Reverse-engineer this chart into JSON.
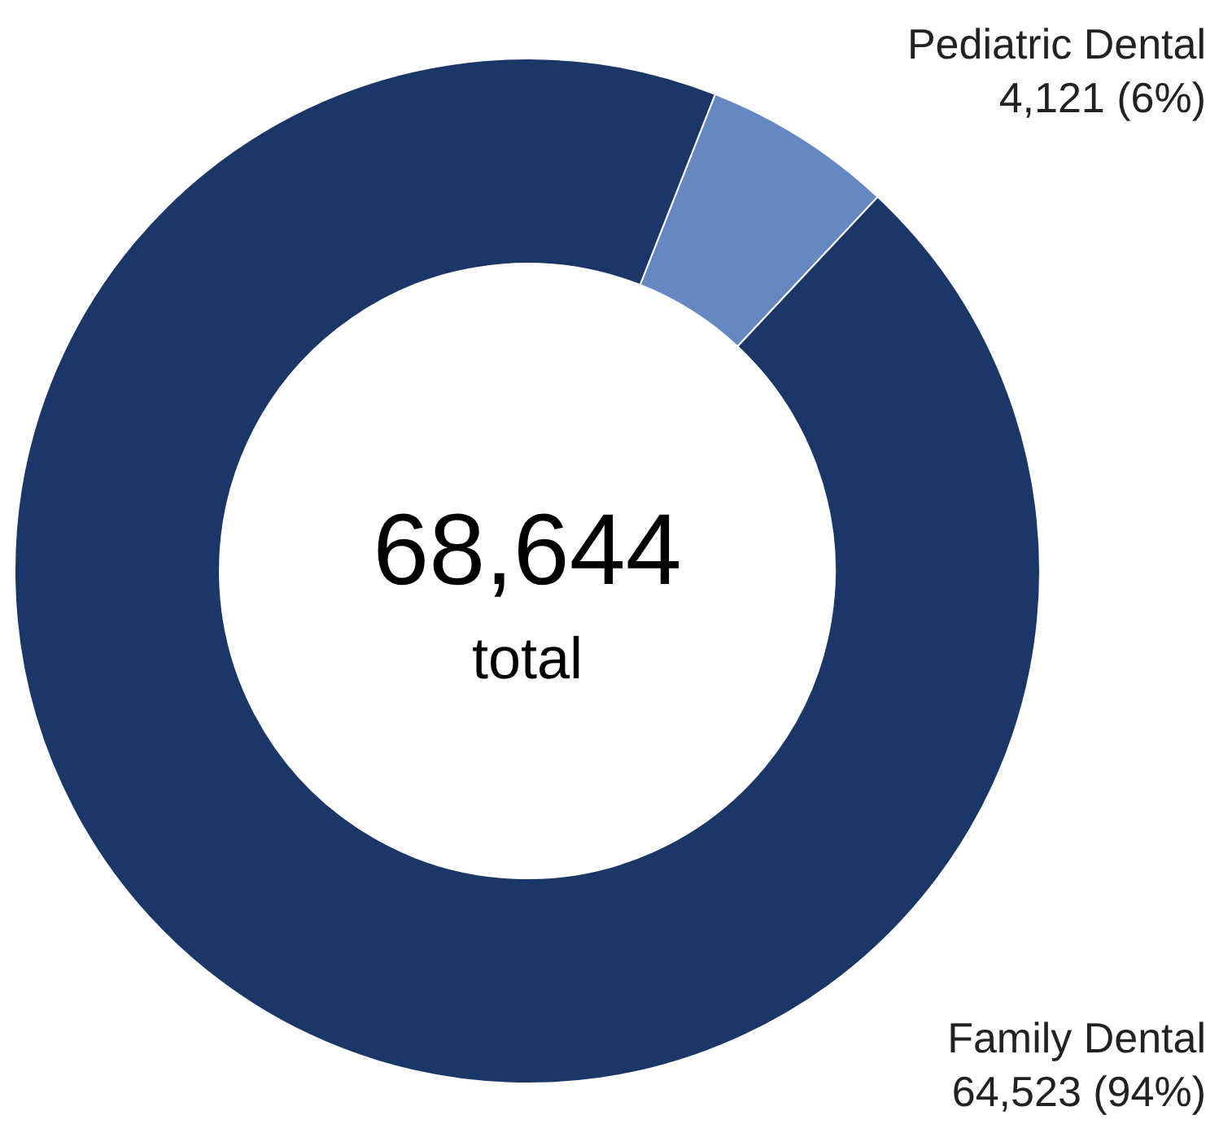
{
  "chart_data": {
    "type": "donut",
    "categories": [
      "Pediatric Dental",
      "Family Dental"
    ],
    "values": [
      4121,
      64523
    ],
    "colors": [
      "#6588c2",
      "#1b3768"
    ],
    "value_labels": [
      "4,121 (6%)",
      "64,523 (94%)"
    ],
    "annotations": [
      "68,644",
      "total"
    ]
  }
}
